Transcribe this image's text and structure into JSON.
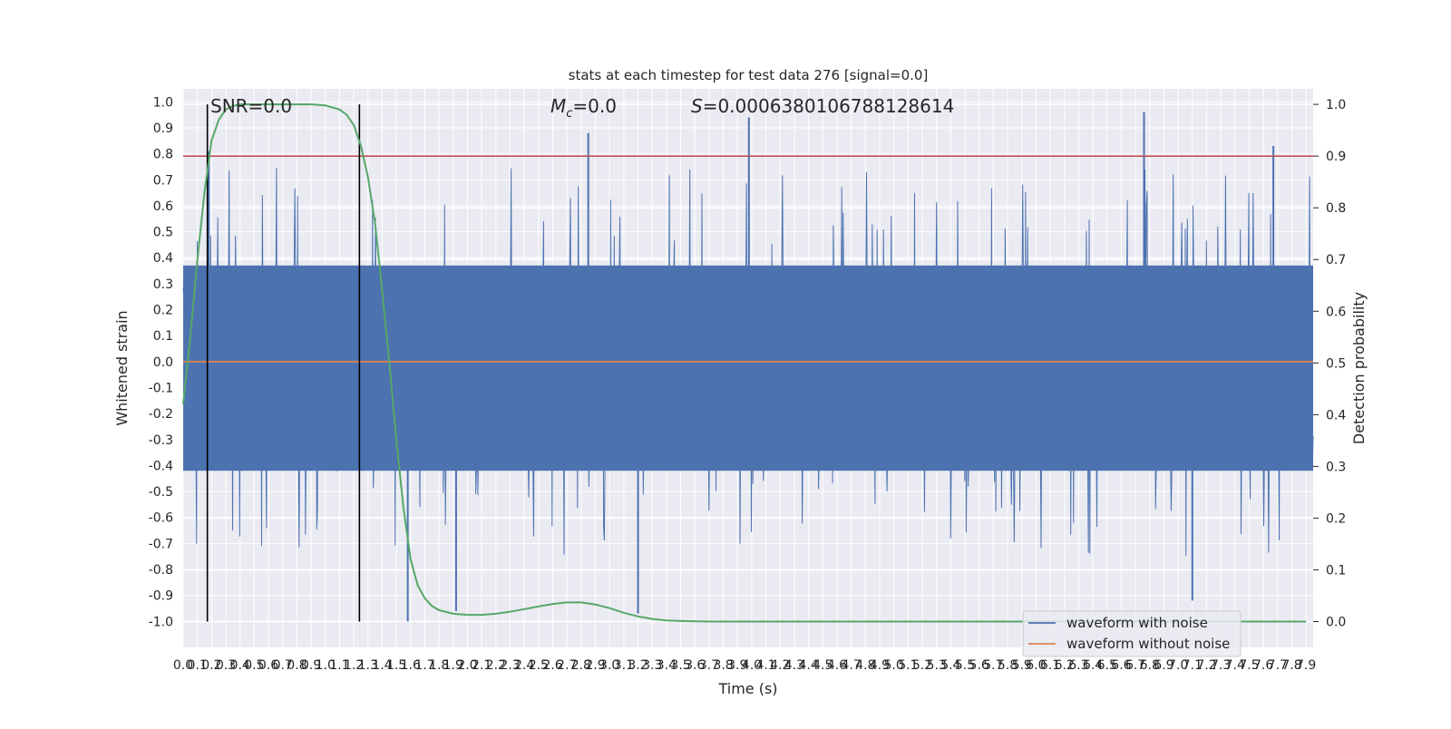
{
  "chart_data": {
    "type": "line",
    "title": "stats at each timestep for test data 276 [signal=0.0]",
    "xlabel": "Time (s)",
    "ylabel": "Whitened strain",
    "y2label": "Detection probability",
    "xlim": [
      0.0,
      7.95
    ],
    "ylim": [
      -1.1,
      1.05
    ],
    "y2lim": [
      -0.05,
      1.03
    ],
    "grid": true,
    "legend_position": "lower-right",
    "annotations": {
      "snr": "SNR=0.0",
      "mc_symbol": "M",
      "mc_sub": "c",
      "mc_value": "=0.0",
      "s_symbol": "S",
      "s_value": "=0.0006380106788128614"
    },
    "x_tick_labels": [
      "0.0",
      "0.1",
      "0.2",
      "0.3",
      "0.4",
      "0.5",
      "0.6",
      "0.7",
      "0.8",
      "0.9",
      "1.0",
      "1.1",
      "1.2",
      "1.3",
      "1.4",
      "1.5",
      "1.6",
      "1.7",
      "1.8",
      "1.9",
      "2.0",
      "2.1",
      "2.2",
      "2.3",
      "2.4",
      "2.5",
      "2.6",
      "2.7",
      "2.8",
      "2.9",
      "3.0",
      "3.1",
      "3.2",
      "3.3",
      "3.4",
      "3.5",
      "3.6",
      "3.7",
      "3.8",
      "3.9",
      "4.0",
      "4.1",
      "4.2",
      "4.3",
      "4.4",
      "4.5",
      "4.6",
      "4.7",
      "4.8",
      "4.9",
      "5.0",
      "5.1",
      "5.2",
      "5.3",
      "5.4",
      "5.5",
      "5.6",
      "5.7",
      "5.8",
      "5.9",
      "6.0",
      "6.1",
      "6.2",
      "6.3",
      "6.4",
      "6.5",
      "6.6",
      "6.7",
      "6.8",
      "6.9",
      "7.0",
      "7.1",
      "7.2",
      "7.3",
      "7.4",
      "7.5",
      "7.6",
      "7.7",
      "7.8",
      "7.9"
    ],
    "y_tick_labels": [
      "1.0",
      "0.9",
      "0.8",
      "0.7",
      "0.6",
      "0.5",
      "0.4",
      "0.3",
      "0.2",
      "0.1",
      "0.0",
      "-0.1",
      "-0.2",
      "-0.3",
      "-0.4",
      "-0.5",
      "-0.6",
      "-0.7",
      "-0.8",
      "-0.9",
      "-1.0"
    ],
    "y2_tick_labels": [
      "1.0",
      "0.9",
      "0.8",
      "0.7",
      "0.6",
      "0.5",
      "0.4",
      "0.3",
      "0.2",
      "0.1",
      "0.0"
    ],
    "series": [
      {
        "name": "waveform with noise",
        "color": "#4c72b0",
        "note_peaks": [
          {
            "x": 0.18,
            "y": 0.81
          },
          {
            "x": 2.85,
            "y": 0.88
          },
          {
            "x": 3.98,
            "y": 0.94
          },
          {
            "x": 6.76,
            "y": 0.96
          },
          {
            "x": 7.67,
            "y": 0.83
          },
          {
            "x": 1.58,
            "y": -1.0
          },
          {
            "x": 1.92,
            "y": -0.96
          },
          {
            "x": 3.2,
            "y": -0.97
          },
          {
            "x": 7.1,
            "y": -0.92
          }
        ],
        "amplitude_band": [
          -0.42,
          0.37
        ]
      },
      {
        "name": "waveform without noise",
        "color": "#dd8452",
        "constant_y": 0.0
      },
      {
        "color": "#55a868",
        "axis": "y2",
        "x": [
          0.0,
          0.05,
          0.1,
          0.15,
          0.2,
          0.25,
          0.3,
          0.35,
          0.4,
          0.5,
          0.6,
          0.7,
          0.8,
          0.9,
          1.0,
          1.1,
          1.15,
          1.2,
          1.25,
          1.3,
          1.35,
          1.4,
          1.45,
          1.5,
          1.55,
          1.6,
          1.65,
          1.7,
          1.75,
          1.8,
          1.9,
          2.0,
          2.1,
          2.2,
          2.3,
          2.4,
          2.5,
          2.6,
          2.7,
          2.8,
          2.9,
          3.0,
          3.1,
          3.2,
          3.3,
          3.4,
          3.5,
          3.7,
          4.0,
          5.0,
          6.0,
          7.0,
          7.9
        ],
        "values": [
          0.42,
          0.55,
          0.7,
          0.83,
          0.93,
          0.97,
          0.99,
          0.997,
          1.0,
          1.0,
          1.0,
          1.0,
          1.0,
          1.0,
          0.998,
          0.99,
          0.98,
          0.96,
          0.92,
          0.86,
          0.77,
          0.64,
          0.5,
          0.35,
          0.22,
          0.12,
          0.07,
          0.045,
          0.03,
          0.022,
          0.015,
          0.013,
          0.013,
          0.015,
          0.019,
          0.024,
          0.029,
          0.034,
          0.037,
          0.037,
          0.033,
          0.026,
          0.017,
          0.01,
          0.005,
          0.002,
          0.001,
          0.0,
          0.0,
          0.0,
          0.0,
          0.0,
          0.0
        ]
      }
    ],
    "reference_lines": {
      "threshold_y2": 0.9,
      "threshold_color": "#c44e52",
      "vertical_x": [
        0.17,
        1.24
      ],
      "vertical_color": "#000000"
    }
  }
}
